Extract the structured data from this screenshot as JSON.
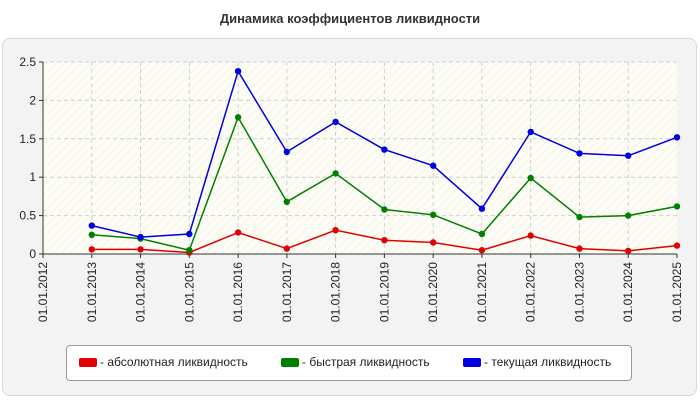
{
  "chart_title": "Динамика коэффициентов ликвидности",
  "colors": {
    "background": "#f3f3f3",
    "plot_background": "#fdfdf6",
    "grid": "#cfcfcf",
    "axis": "#333333"
  },
  "chart_data": {
    "type": "line",
    "title": "Динамика коэффициентов ликвидности",
    "xlabel": "",
    "ylabel": "",
    "ylim": [
      0,
      2.5
    ],
    "yticks": [
      "0",
      "0.5",
      "1",
      "1.5",
      "2",
      "2.5"
    ],
    "ytick_values": [
      0,
      0.5,
      1,
      1.5,
      2,
      2.5
    ],
    "categories": [
      "01.01.2012",
      "01.01.2013",
      "01.01.2014",
      "01.01.2015",
      "01.01.2016",
      "01.01.2017",
      "01.01.2018",
      "01.01.2019",
      "01.01.2020",
      "01.01.2021",
      "01.01.2022",
      "01.01.2023",
      "01.01.2024",
      "01.01.2025"
    ],
    "grid": true,
    "legend_position": "bottom",
    "series": [
      {
        "name": "абсолютная ликвидность",
        "legend_label": "- абсолютная ликвидность",
        "color": "#e00000",
        "values": [
          null,
          0.06,
          0.06,
          0.02,
          0.28,
          0.07,
          0.31,
          0.18,
          0.15,
          0.05,
          0.24,
          0.07,
          0.04,
          0.11
        ]
      },
      {
        "name": "быстрая ликвидность",
        "legend_label": "- быстрая ликвидность",
        "color": "#008000",
        "values": [
          null,
          0.25,
          0.2,
          0.05,
          1.78,
          0.68,
          1.05,
          0.58,
          0.51,
          0.26,
          0.99,
          0.48,
          0.5,
          0.62
        ]
      },
      {
        "name": "текущая ликвидность",
        "legend_label": "- текущая ликвидность",
        "color": "#0000e0",
        "values": [
          null,
          0.37,
          0.22,
          0.26,
          2.38,
          1.33,
          1.72,
          1.36,
          1.15,
          0.59,
          1.59,
          1.31,
          1.28,
          1.52
        ]
      }
    ]
  }
}
